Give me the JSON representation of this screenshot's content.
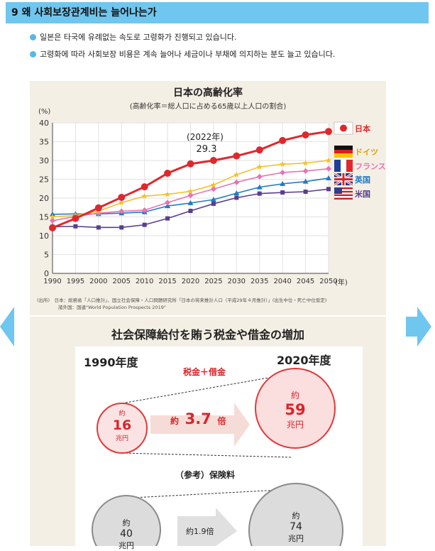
{
  "header": {
    "title": "9 왜 사회보장관계비는 늘어나는가"
  },
  "bullets": [
    "일본은 타국에 유례없는 속도로 고령화가 진행되고 있습니다.",
    "고령화에 따라 사회보장 비용은 계속 늘어나 세금이나 부채에 의지하는 분도 늘고 있습니다."
  ],
  "chart_data": {
    "type": "line",
    "title": "日本の高齢化率",
    "subtitle": "(高齢化率＝総人口に占める65歳以上人口の割合)",
    "ylabel": "(%)",
    "xlabel": "(年)",
    "x": [
      1990,
      1995,
      2000,
      2005,
      2010,
      2015,
      2020,
      2025,
      2030,
      2035,
      2040,
      2045,
      2050
    ],
    "ylim": [
      0,
      40
    ],
    "yticks": [
      0,
      5,
      10,
      15,
      20,
      25,
      30,
      35,
      40
    ],
    "grid": true,
    "legend_position": "right",
    "annotation": {
      "label": "(2022年)",
      "value": "29.3"
    },
    "series": [
      {
        "name": "日本",
        "color": "#e0282c",
        "marker": "circle",
        "values": [
          12.1,
          14.6,
          17.4,
          20.2,
          23.0,
          26.6,
          29.1,
          30.0,
          31.2,
          32.8,
          35.3,
          36.8,
          37.7
        ]
      },
      {
        "name": "ドイツ",
        "color": "#f2c12e",
        "marker": "star",
        "values": [
          15.0,
          15.4,
          16.5,
          18.8,
          20.5,
          21.0,
          21.8,
          23.5,
          26.2,
          28.3,
          29.0,
          29.3,
          30.0
        ]
      },
      {
        "name": "フランス",
        "color": "#e873b4",
        "marker": "diamond",
        "values": [
          14.0,
          15.1,
          16.0,
          16.5,
          16.8,
          18.8,
          20.7,
          22.4,
          24.2,
          25.7,
          26.8,
          27.2,
          27.8
        ]
      },
      {
        "name": "英国",
        "color": "#1f7ac4",
        "marker": "triangle",
        "values": [
          15.7,
          15.8,
          15.8,
          16.0,
          16.3,
          17.9,
          18.7,
          19.6,
          21.3,
          22.9,
          23.8,
          24.4,
          25.3
        ]
      },
      {
        "name": "米国",
        "color": "#5a3e8e",
        "marker": "square",
        "values": [
          12.4,
          12.5,
          12.2,
          12.2,
          12.9,
          14.6,
          16.6,
          18.5,
          20.1,
          21.2,
          21.5,
          21.7,
          22.4
        ]
      }
    ]
  },
  "source": {
    "line1": "(出所)　日本：総務省「人口推計」、国立社会保障・人口問題研究所「日本の将来推計人口（平成29年４月推計）」(出生中位・死亡中位仮定)",
    "line2": "諸外国：国連\"World Population Prospects 2019\""
  },
  "infographic": {
    "title": "社会保障給付を賄う税金や借金の増加",
    "year_left": "1990年度",
    "year_right": "2020年度",
    "tax_debt_label": "税金＋借金",
    "left_circle": {
      "top": "約",
      "value": "16",
      "unit": "兆円"
    },
    "right_circle": {
      "top": "約",
      "value": "59",
      "unit": "兆円"
    },
    "arrow_label": {
      "prefix": "約",
      "value": "3.7",
      "suffix": "倍"
    },
    "reference_label": "（参考）保険料",
    "ref_left_circle": {
      "top": "約",
      "value": "40",
      "unit": "兆円"
    },
    "ref_right_circle": {
      "top": "約",
      "value": "74",
      "unit": "兆円"
    },
    "ref_arrow_label": "約1.9倍"
  },
  "colors": {
    "header": "#6fc6ef",
    "panel": "#f4efe4",
    "accent_red": "#d8252b"
  }
}
